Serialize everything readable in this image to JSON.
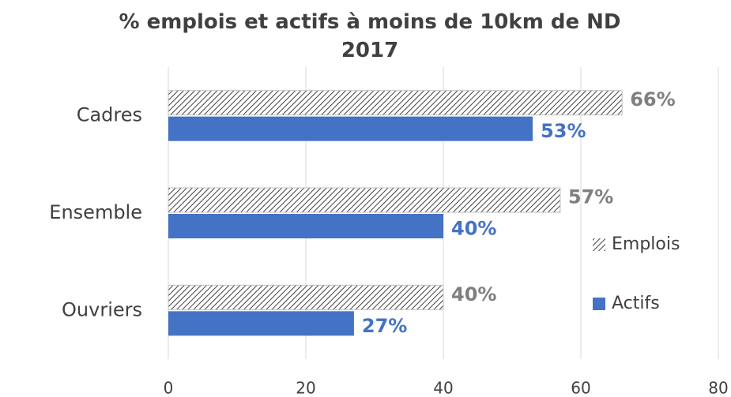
{
  "chart_data": {
    "type": "bar",
    "orientation": "horizontal",
    "title": "% emplois et actifs à moins de 10km de ND 2017",
    "categories": [
      "Cadres",
      "Ensemble",
      "Ouvriers"
    ],
    "series": [
      {
        "name": "Emplois",
        "color": "#404040",
        "pattern": "hatch",
        "values": [
          66,
          57,
          40
        ],
        "value_labels": [
          "66%",
          "57%",
          "40%"
        ],
        "label_color": "#7f7f7f"
      },
      {
        "name": "Actifs",
        "color": "#4472c4",
        "values": [
          53,
          40,
          27
        ],
        "value_labels": [
          "53%",
          "40%",
          "27%"
        ],
        "label_color": "#4472c4"
      }
    ],
    "xlim": [
      0,
      80
    ],
    "xticks": [
      0,
      20,
      40,
      60,
      80
    ],
    "grid": true,
    "legend": "right"
  }
}
